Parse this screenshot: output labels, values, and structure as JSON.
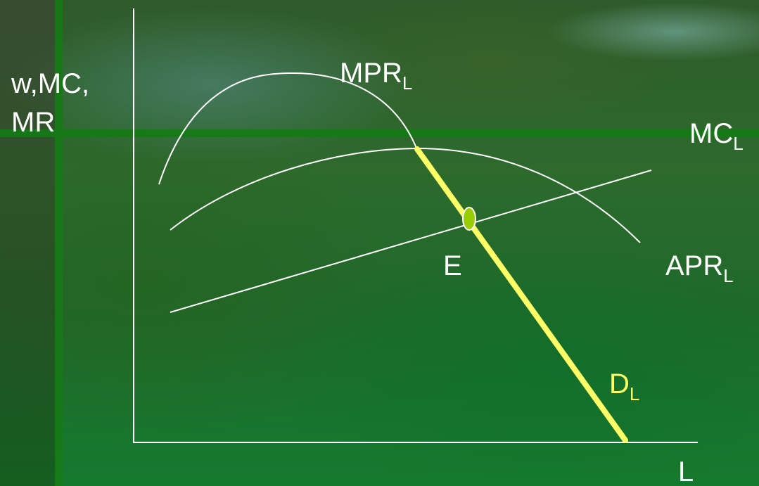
{
  "axis_labels": {
    "y_line1": "w,MC,",
    "y_line2": "MR",
    "x": "L"
  },
  "curve_labels": {
    "mpr": {
      "main": "MPR",
      "sub": "L"
    },
    "apr": {
      "main": "APR",
      "sub": "L"
    },
    "mc": {
      "main": "MC",
      "sub": "L"
    },
    "d": {
      "main": "D",
      "sub": "L"
    },
    "equilibrium": "E"
  },
  "colors": {
    "curves": "#ffffff",
    "demand": "#ffff66",
    "point": "#99cc00",
    "stripes": "#157a15"
  }
}
